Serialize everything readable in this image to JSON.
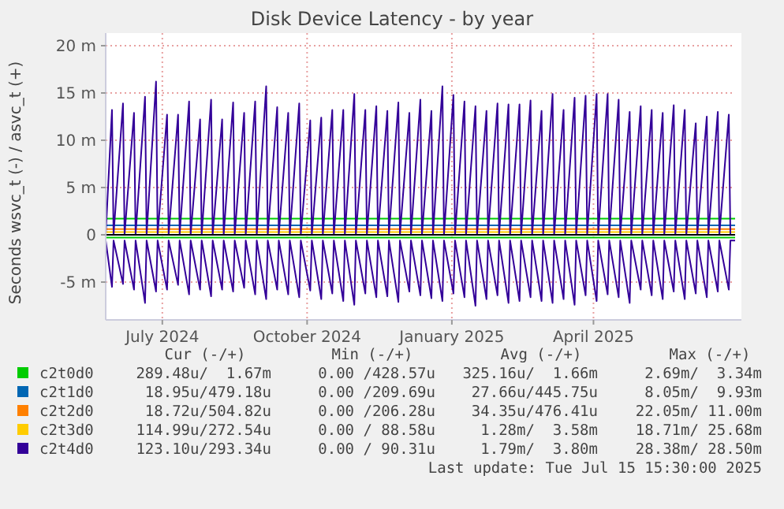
{
  "chart_data": {
    "type": "line",
    "title": "Disk Device Latency - by year",
    "ylabel": "Seconds wsvc_t (-) / asvc_t (+)",
    "xlim": [
      "2024-06-10",
      "2025-07-15"
    ],
    "xticks": [
      {
        "value": "2024-07-16",
        "label": "July 2024"
      },
      {
        "value": "2024-10-16",
        "label": "October 2024"
      },
      {
        "value": "2025-01-16",
        "label": "January 2025"
      },
      {
        "value": "2025-04-16",
        "label": "April 2025"
      }
    ],
    "ylim": [
      -9,
      20
    ],
    "yticks": [
      {
        "value": -5,
        "label": "-5 m"
      },
      0,
      {
        "value": 5,
        "label": "5 m"
      },
      {
        "value": 10,
        "label": "10 m"
      },
      {
        "value": 15,
        "label": "15 m"
      },
      {
        "value": 20,
        "label": "20 m"
      }
    ],
    "grid": true,
    "legend": "bottom",
    "x": [
      "2024-06-10",
      "2024-06-14",
      "2024-06-15",
      "2024-06-21",
      "2024-06-22",
      "2024-06-28",
      "2024-06-29",
      "2024-07-05",
      "2024-07-06",
      "2024-07-12",
      "2024-07-13",
      "2024-07-19",
      "2024-07-20",
      "2024-07-26",
      "2024-07-27",
      "2024-08-02",
      "2024-08-03",
      "2024-08-09",
      "2024-08-10",
      "2024-08-16",
      "2024-08-17",
      "2024-08-23",
      "2024-08-24",
      "2024-08-30",
      "2024-08-31",
      "2024-09-06",
      "2024-09-07",
      "2024-09-13",
      "2024-09-14",
      "2024-09-20",
      "2024-09-21",
      "2024-09-27",
      "2024-09-28",
      "2024-10-04",
      "2024-10-05",
      "2024-10-11",
      "2024-10-12",
      "2024-10-18",
      "2024-10-19",
      "2024-10-25",
      "2024-10-26",
      "2024-11-01",
      "2024-11-02",
      "2024-11-08",
      "2024-11-09",
      "2024-11-15",
      "2024-11-16",
      "2024-11-22",
      "2024-11-23",
      "2024-11-29",
      "2024-11-30",
      "2024-12-06",
      "2024-12-07",
      "2024-12-13",
      "2024-12-14",
      "2024-12-20",
      "2024-12-21",
      "2024-12-27",
      "2024-12-28",
      "2025-01-03",
      "2025-01-04",
      "2025-01-10",
      "2025-01-11",
      "2025-01-17",
      "2025-01-18",
      "2025-01-24",
      "2025-01-25",
      "2025-01-31",
      "2025-02-01",
      "2025-02-07",
      "2025-02-08",
      "2025-02-14",
      "2025-02-15",
      "2025-02-21",
      "2025-02-22",
      "2025-02-28",
      "2025-03-01",
      "2025-03-07",
      "2025-03-08",
      "2025-03-14",
      "2025-03-15",
      "2025-03-21",
      "2025-03-22",
      "2025-03-28",
      "2025-03-29",
      "2025-04-04",
      "2025-04-05",
      "2025-04-11",
      "2025-04-12",
      "2025-04-18",
      "2025-04-19",
      "2025-04-25",
      "2025-04-26",
      "2025-05-02",
      "2025-05-03",
      "2025-05-09",
      "2025-05-10",
      "2025-05-16",
      "2025-05-17",
      "2025-05-23",
      "2025-05-24",
      "2025-05-30",
      "2025-05-31",
      "2025-06-06",
      "2025-06-07",
      "2025-06-13",
      "2025-06-14",
      "2025-06-20",
      "2025-06-21",
      "2025-06-27",
      "2025-06-28",
      "2025-07-04",
      "2025-07-05",
      "2025-07-11",
      "2025-07-12",
      "2025-07-15"
    ],
    "series": [
      {
        "name": "c2t0d0",
        "color": "#00cc00",
        "x": [
          "2024-06-10",
          "2025-07-15"
        ],
        "values": [
          1.7,
          1.7
        ]
      },
      {
        "color": "#00cc00",
        "x": [
          "2024-06-10",
          "2025-07-15"
        ],
        "values": [
          -0.3,
          -0.3
        ]
      },
      {
        "name": "c2t1d0",
        "color": "#0066b3",
        "x": [
          "2024-06-10",
          "2025-07-15"
        ],
        "values": [
          1.0,
          1.0
        ]
      },
      {
        "name": "c2t2d0",
        "color": "#ff8000",
        "x": [
          "2024-06-10",
          "2025-07-15"
        ],
        "values": [
          0.6,
          0.6
        ]
      },
      {
        "name": "c2t3d0",
        "color": "#ffcc00",
        "x": [
          "2024-06-10",
          "2025-07-15"
        ],
        "values": [
          0.3,
          0.3
        ]
      },
      {
        "name": "c2t4d0",
        "color": "#330099",
        "values": [
          0,
          13.2,
          0,
          13.9,
          0,
          12.9,
          0,
          14.6,
          0,
          16.2,
          0,
          12.7,
          0,
          12.7,
          0,
          14.1,
          0,
          12.2,
          0,
          14.3,
          0,
          12.2,
          0,
          14.0,
          0,
          12.9,
          0,
          14.1,
          0,
          15.7,
          0,
          13.5,
          0,
          12.9,
          0,
          13.9,
          0,
          12.1,
          0,
          12.4,
          0,
          13.2,
          0,
          13.2,
          0,
          14.9,
          0,
          13.2,
          0,
          13.6,
          0,
          13.1,
          0,
          14.0,
          0,
          12.9,
          0,
          14.3,
          0,
          13.1,
          0,
          15.7,
          0,
          14.8,
          0,
          14.1,
          0,
          13.6,
          0,
          13.1,
          0,
          13.9,
          0,
          13.8,
          0,
          13.8,
          0,
          14.2,
          0,
          13.1,
          0,
          14.9,
          0,
          13.2,
          0,
          14.5,
          0,
          14.7,
          0,
          14.9,
          0,
          14.9,
          0,
          14.3,
          0,
          13.0,
          0,
          13.6,
          0,
          13.2,
          0,
          12.9,
          0,
          13.7,
          0,
          13.2,
          0,
          11.8,
          0,
          12.5,
          0,
          13.0,
          0,
          12.7,
          0,
          0
        ]
      },
      {
        "color": "#330099",
        "values": [
          -0.6,
          -5.5,
          -0.6,
          -5.2,
          -0.6,
          -5.8,
          -0.6,
          -7.2,
          -0.6,
          -6.0,
          -0.6,
          -5.8,
          -0.6,
          -5.3,
          -0.6,
          -6.3,
          -0.6,
          -5.8,
          -0.6,
          -6.5,
          -0.6,
          -5.8,
          -0.6,
          -6.0,
          -0.6,
          -5.6,
          -0.6,
          -6.3,
          -0.6,
          -6.8,
          -0.6,
          -5.8,
          -0.6,
          -6.3,
          -0.6,
          -6.6,
          -0.6,
          -5.9,
          -0.6,
          -6.8,
          -0.6,
          -6.2,
          -0.6,
          -7.0,
          -0.6,
          -7.4,
          -0.6,
          -6.2,
          -0.6,
          -6.6,
          -0.6,
          -6.5,
          -0.6,
          -7.1,
          -0.6,
          -6.0,
          -0.6,
          -6.4,
          -0.6,
          -6.7,
          -0.6,
          -7.0,
          -0.6,
          -6.2,
          -0.6,
          -6.6,
          -0.6,
          -7.5,
          -0.6,
          -6.8,
          -0.6,
          -6.4,
          -0.6,
          -7.2,
          -0.6,
          -7.0,
          -0.6,
          -6.6,
          -0.6,
          -7.0,
          -0.6,
          -7.2,
          -0.6,
          -6.8,
          -0.6,
          -7.4,
          -0.6,
          -6.4,
          -0.6,
          -7.0,
          -0.6,
          -6.3,
          -0.6,
          -6.6,
          -0.6,
          -7.2,
          -0.6,
          -5.8,
          -0.6,
          -6.4,
          -0.6,
          -6.8,
          -0.6,
          -6.0,
          -0.6,
          -6.8,
          -0.6,
          -6.2,
          -0.6,
          -6.6,
          -0.6,
          -6.0,
          -0.6,
          -5.8,
          -0.6,
          -0.6
        ]
      }
    ],
    "annotations": [
      "Cur (-/+)",
      "Min (-/+)",
      "Avg (-/+)",
      "Max (-/+)",
      "289.48u/  1.67m",
      "0.00 /428.57u",
      "325.16u/  1.66m",
      "2.69m/  3.34m",
      "18.95u/479.18u",
      "0.00 /209.69u",
      "27.66u/445.75u",
      "8.05m/  9.93m",
      "18.72u/504.82u",
      "0.00 /206.28u",
      "34.35u/476.41u",
      "22.05m/ 11.00m",
      "114.99u/272.54u",
      "0.00 / 88.58u",
      "1.28m/  3.58m",
      "18.71m/ 25.68m",
      "123.10u/293.34u",
      "0.00 / 90.31u",
      "1.79m/  3.80m",
      "28.38m/ 28.50m",
      "Last update: Tue Jul 15 15:30:00 2025"
    ]
  }
}
